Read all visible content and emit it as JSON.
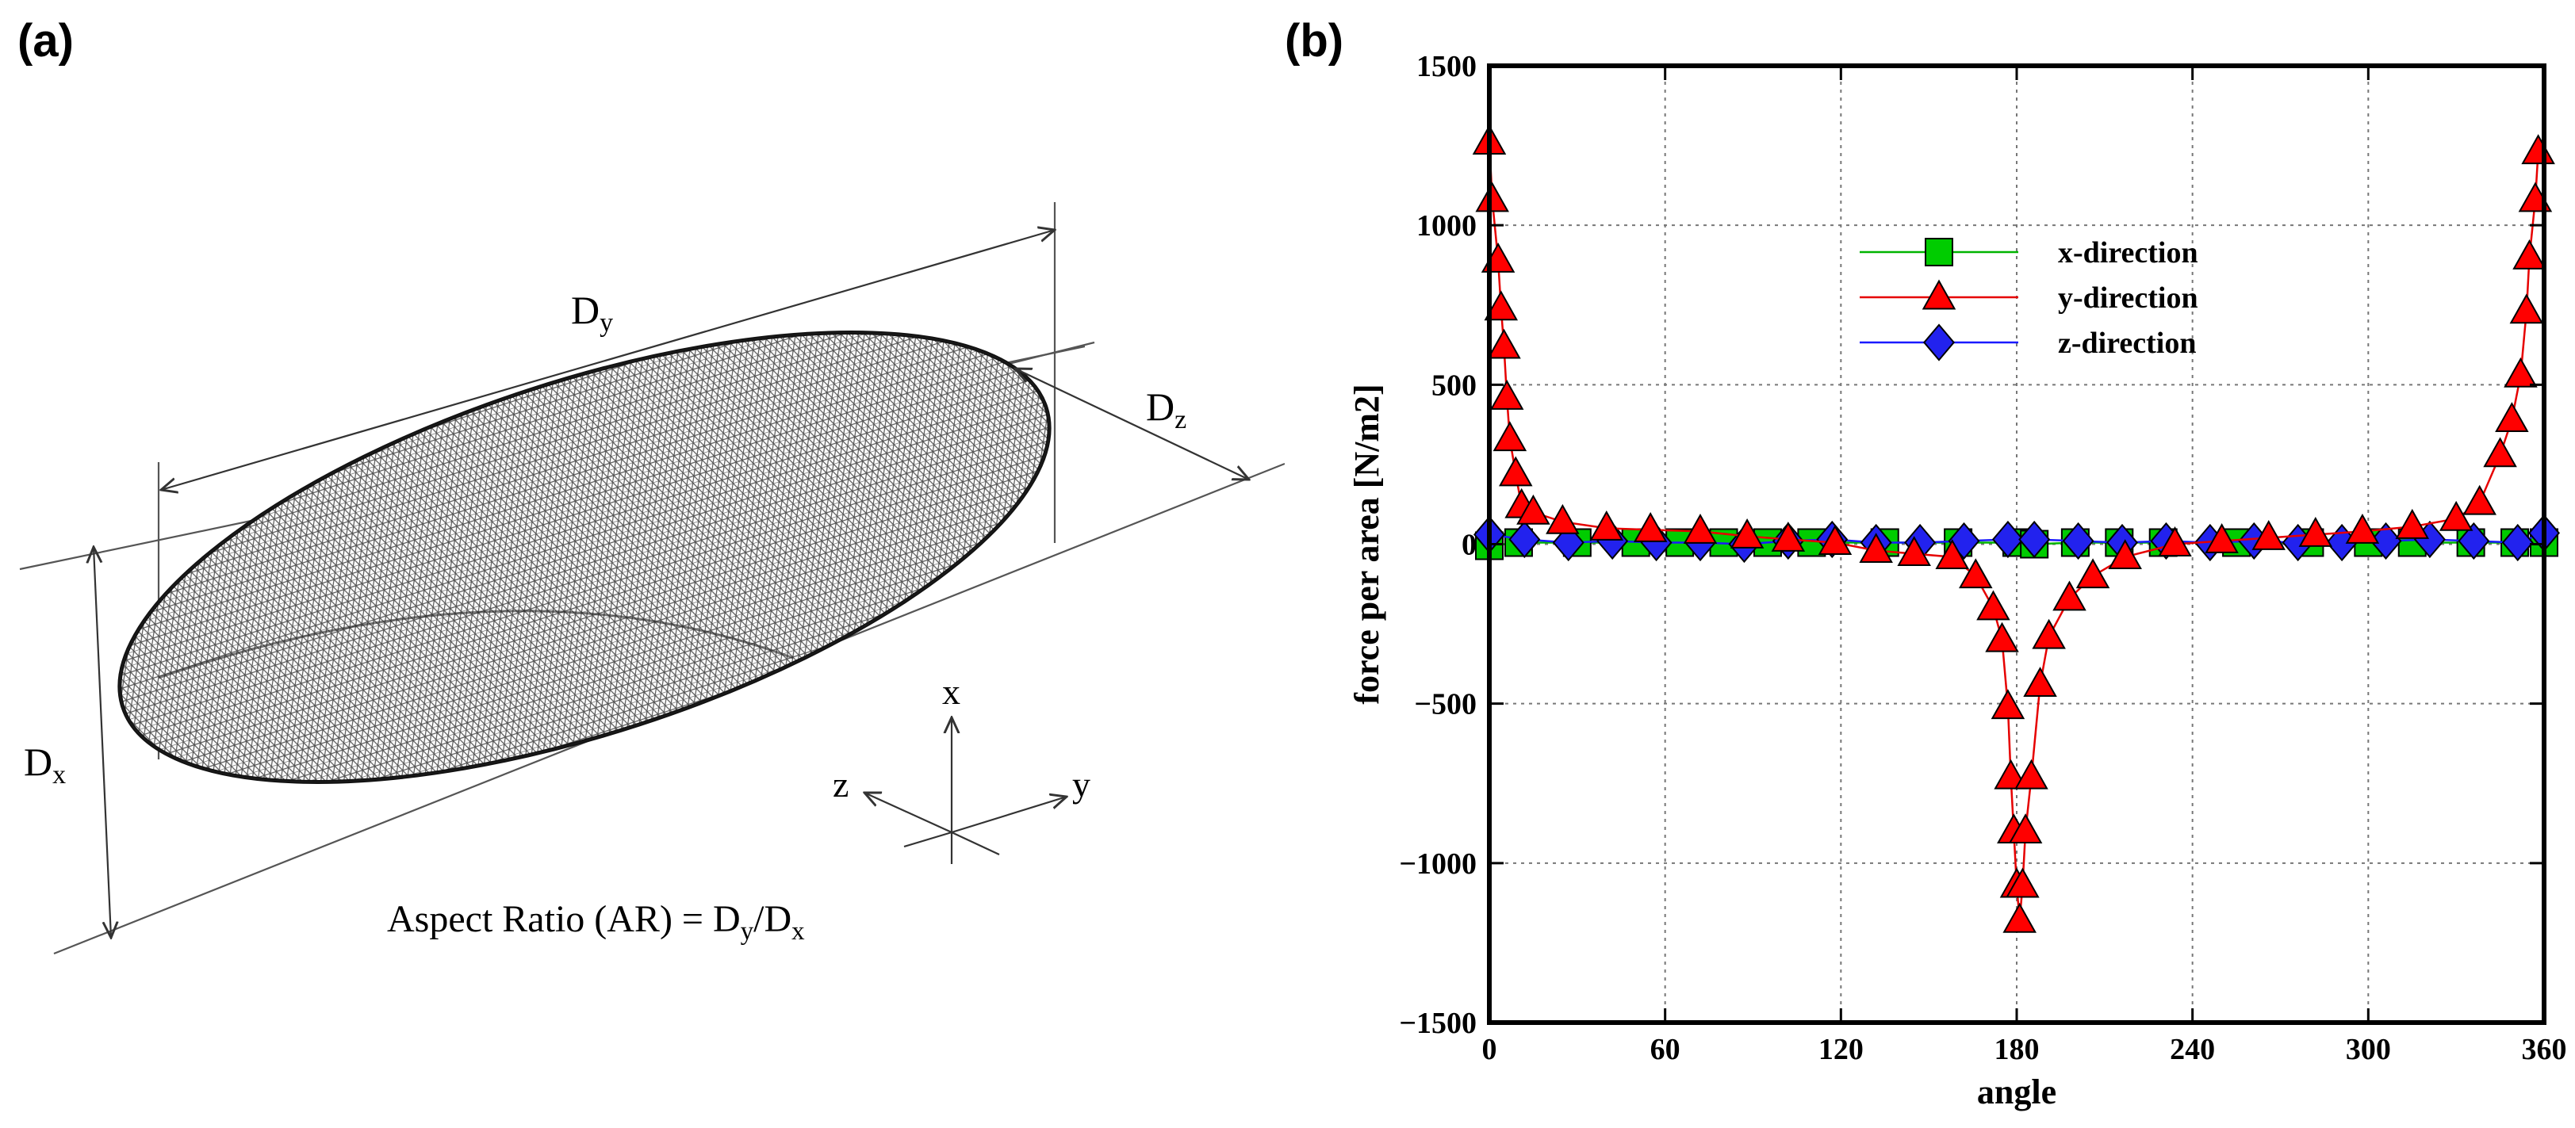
{
  "panel_a": {
    "label": "(a)",
    "dim_dy": "D",
    "dim_dy_sub": "y",
    "dim_dx": "D",
    "dim_dx_sub": "x",
    "dim_dz": "D",
    "dim_dz_sub": "z",
    "axis_x": "x",
    "axis_y": "y",
    "axis_z": "z",
    "aspect_ratio_prefix": "Aspect Ratio (AR) = D",
    "aspect_ratio_sub1": "y",
    "aspect_ratio_slash": "/D",
    "aspect_ratio_sub2": "x"
  },
  "panel_b": {
    "label": "(b)"
  },
  "chart_data": {
    "type": "line",
    "title": "",
    "xlabel": "angle",
    "ylabel": "force per area [N/m2]",
    "xlim": [
      0,
      360
    ],
    "ylim": [
      -1500,
      1500
    ],
    "xticks": [
      0,
      60,
      120,
      180,
      240,
      300,
      360
    ],
    "yticks": [
      -1500,
      -1000,
      -500,
      0,
      500,
      1000,
      1500
    ],
    "xtick_labels": [
      "0",
      "60",
      "120",
      "180",
      "240",
      "300",
      "360"
    ],
    "ytick_labels": [
      "−1500",
      "−1000",
      "−500",
      "0",
      "500",
      "1000",
      "1500"
    ],
    "grid": true,
    "legend_position": "top-center",
    "series": [
      {
        "name": "x-direction",
        "color": "#00cc00",
        "line_color": "#00b400",
        "marker": "square",
        "x": [
          0,
          10,
          30,
          50,
          65,
          80,
          95,
          110,
          135,
          160,
          180,
          186,
          200,
          215,
          230,
          255,
          280,
          300,
          315,
          335,
          350,
          360
        ],
        "y": [
          -5,
          5,
          5,
          5,
          5,
          5,
          5,
          5,
          5,
          5,
          5,
          0,
          5,
          5,
          5,
          5,
          5,
          5,
          5,
          5,
          5,
          5
        ]
      },
      {
        "name": "y-direction",
        "color": "#ff0000",
        "line_color": "#e60000",
        "marker": "triangle",
        "x": [
          0,
          1,
          3,
          4,
          5,
          6,
          7,
          9,
          11,
          15,
          25,
          40,
          55,
          72,
          88,
          102,
          118,
          132,
          145,
          158,
          166,
          172,
          175,
          177,
          178,
          179,
          180,
          181,
          182,
          183,
          185,
          188,
          191,
          198,
          206,
          217,
          234,
          250,
          266,
          282,
          298,
          315,
          330,
          338,
          345,
          349,
          352,
          354,
          355,
          357,
          358
        ],
        "y": [
          1260,
          1080,
          890,
          740,
          620,
          460,
          330,
          220,
          120,
          100,
          70,
          50,
          45,
          40,
          25,
          15,
          5,
          -20,
          -30,
          -40,
          -100,
          -200,
          -300,
          -510,
          -730,
          -900,
          -1070,
          -1180,
          -1070,
          -900,
          -730,
          -440,
          -290,
          -170,
          -100,
          -40,
          0,
          10,
          20,
          30,
          40,
          55,
          80,
          130,
          280,
          390,
          530,
          730,
          900,
          1080,
          1230
        ]
      },
      {
        "name": "z-direction",
        "color": "#2222ee",
        "line_color": "#1a1aff",
        "marker": "diamond",
        "x": [
          0,
          12,
          27,
          42,
          57,
          72,
          87,
          102,
          117,
          132,
          147,
          162,
          177,
          186,
          201,
          216,
          231,
          246,
          261,
          276,
          291,
          306,
          321,
          336,
          351,
          360
        ],
        "y": [
          30,
          15,
          5,
          10,
          5,
          5,
          0,
          10,
          15,
          5,
          5,
          10,
          15,
          15,
          10,
          5,
          10,
          5,
          10,
          5,
          5,
          10,
          15,
          10,
          5,
          35
        ]
      }
    ]
  }
}
